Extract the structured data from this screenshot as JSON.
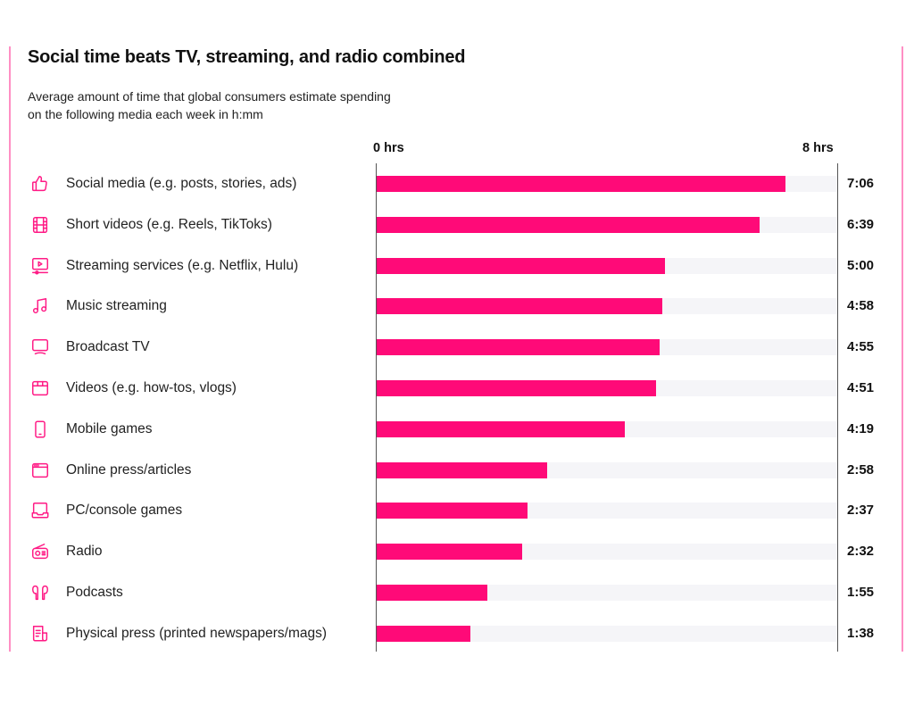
{
  "header": {
    "title": "Social time beats TV, streaming, and radio combined",
    "subtitle_line1": "Average amount of time that global consumers estimate spending",
    "subtitle_line2": "on the following media each week in h:mm"
  },
  "colors": {
    "bar": "#ff0a78",
    "track": "#f5f5f8",
    "frame": "#ff8fc4",
    "icon": "#ff1a85"
  },
  "chart_data": {
    "type": "bar",
    "orientation": "horizontal",
    "title": "Social time beats TV, streaming, and radio combined",
    "subtitle": "Average amount of time that global consumers estimate spending on the following media each week in h:mm",
    "xlabel": "",
    "ylabel": "",
    "xlim_minutes": [
      0,
      480
    ],
    "axis_start_label": "0 hrs",
    "axis_end_label": "8 hrs",
    "grid": false,
    "categories": [
      "Social media (e.g. posts, stories, ads)",
      "Short videos (e.g. Reels, TikToks)",
      "Streaming services (e.g. Netflix, Hulu)",
      "Music streaming",
      "Broadcast TV",
      "Videos (e.g. how-tos, vlogs)",
      "Mobile games",
      "Online press/articles",
      "PC/console games",
      "Radio",
      "Podcasts",
      "Physical press (printed newspapers/mags)"
    ],
    "icons": [
      "thumbs-up-icon",
      "film-strip-icon",
      "streaming-play-icon",
      "music-note-icon",
      "tv-icon",
      "clapperboard-icon",
      "mobile-phone-icon",
      "browser-window-icon",
      "laptop-icon",
      "radio-icon",
      "earbuds-icon",
      "newspaper-icon"
    ],
    "labels": [
      "7:06",
      "6:39",
      "5:00",
      "4:58",
      "4:55",
      "4:51",
      "4:19",
      "2:58",
      "2:37",
      "2:32",
      "1:55",
      "1:38"
    ],
    "values_minutes": [
      426,
      399,
      300,
      298,
      295,
      291,
      259,
      178,
      157,
      152,
      115,
      98
    ]
  }
}
